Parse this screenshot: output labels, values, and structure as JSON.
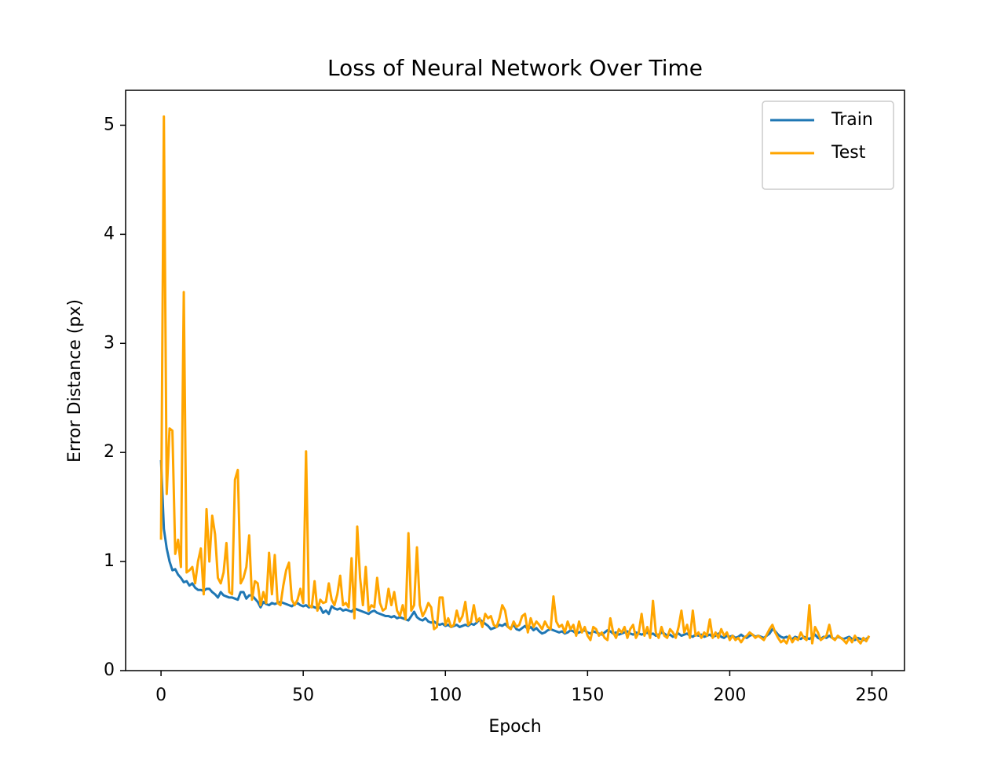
{
  "chart_data": {
    "type": "line",
    "title": "Loss of Neural Network Over Time",
    "xlabel": "Epoch",
    "ylabel": "Error Distance (px)",
    "x": [
      0,
      1,
      2,
      3,
      4,
      5,
      6,
      7,
      8,
      9,
      10,
      11,
      12,
      13,
      14,
      15,
      16,
      17,
      18,
      19,
      20,
      21,
      22,
      23,
      24,
      25,
      26,
      27,
      28,
      29,
      30,
      31,
      32,
      33,
      34,
      35,
      36,
      37,
      38,
      39,
      40,
      41,
      42,
      43,
      44,
      45,
      46,
      47,
      48,
      49,
      50,
      51,
      52,
      53,
      54,
      55,
      56,
      57,
      58,
      59,
      60,
      61,
      62,
      63,
      64,
      65,
      66,
      67,
      68,
      69,
      70,
      71,
      72,
      73,
      74,
      75,
      76,
      77,
      78,
      79,
      80,
      81,
      82,
      83,
      84,
      85,
      86,
      87,
      88,
      89,
      90,
      91,
      92,
      93,
      94,
      95,
      96,
      97,
      98,
      99,
      100,
      101,
      102,
      103,
      104,
      105,
      106,
      107,
      108,
      109,
      110,
      111,
      112,
      113,
      114,
      115,
      116,
      117,
      118,
      119,
      120,
      121,
      122,
      123,
      124,
      125,
      126,
      127,
      128,
      129,
      130,
      131,
      132,
      133,
      134,
      135,
      136,
      137,
      138,
      139,
      140,
      141,
      142,
      143,
      144,
      145,
      146,
      147,
      148,
      149,
      150,
      151,
      152,
      153,
      154,
      155,
      156,
      157,
      158,
      159,
      160,
      161,
      162,
      163,
      164,
      165,
      166,
      167,
      168,
      169,
      170,
      171,
      172,
      173,
      174,
      175,
      176,
      177,
      178,
      179,
      180,
      181,
      182,
      183,
      184,
      185,
      186,
      187,
      188,
      189,
      190,
      191,
      192,
      193,
      194,
      195,
      196,
      197,
      198,
      199,
      200,
      201,
      202,
      203,
      204,
      205,
      206,
      207,
      208,
      209,
      210,
      211,
      212,
      213,
      214,
      215,
      216,
      217,
      218,
      219,
      220,
      221,
      222,
      223,
      224,
      225,
      226,
      227,
      228,
      229,
      230,
      231,
      232,
      233,
      234,
      235,
      236,
      237,
      238,
      239,
      240,
      241,
      242,
      243,
      244,
      245,
      246,
      247,
      248,
      249
    ],
    "series": [
      {
        "name": "Train",
        "color": "#1f77b4",
        "values": [
          1.93,
          1.3,
          1.12,
          1.0,
          0.92,
          0.93,
          0.88,
          0.85,
          0.81,
          0.82,
          0.78,
          0.8,
          0.76,
          0.74,
          0.74,
          0.73,
          0.75,
          0.75,
          0.72,
          0.7,
          0.67,
          0.72,
          0.69,
          0.68,
          0.67,
          0.67,
          0.66,
          0.65,
          0.72,
          0.72,
          0.66,
          0.69,
          0.69,
          0.66,
          0.63,
          0.58,
          0.63,
          0.61,
          0.6,
          0.62,
          0.61,
          0.62,
          0.63,
          0.62,
          0.61,
          0.6,
          0.59,
          0.61,
          0.62,
          0.6,
          0.59,
          0.6,
          0.58,
          0.59,
          0.58,
          0.57,
          0.58,
          0.53,
          0.55,
          0.52,
          0.59,
          0.57,
          0.56,
          0.57,
          0.55,
          0.56,
          0.55,
          0.54,
          0.57,
          0.56,
          0.55,
          0.54,
          0.53,
          0.52,
          0.54,
          0.55,
          0.53,
          0.52,
          0.51,
          0.5,
          0.5,
          0.49,
          0.5,
          0.48,
          0.49,
          0.48,
          0.47,
          0.46,
          0.5,
          0.54,
          0.49,
          0.47,
          0.46,
          0.48,
          0.45,
          0.44,
          0.45,
          0.43,
          0.42,
          0.43,
          0.41,
          0.42,
          0.4,
          0.41,
          0.42,
          0.4,
          0.41,
          0.42,
          0.41,
          0.43,
          0.42,
          0.44,
          0.47,
          0.45,
          0.43,
          0.41,
          0.38,
          0.39,
          0.4,
          0.42,
          0.41,
          0.43,
          0.4,
          0.39,
          0.42,
          0.38,
          0.37,
          0.39,
          0.41,
          0.38,
          0.4,
          0.37,
          0.39,
          0.36,
          0.34,
          0.35,
          0.37,
          0.38,
          0.37,
          0.36,
          0.35,
          0.36,
          0.34,
          0.35,
          0.37,
          0.36,
          0.34,
          0.35,
          0.36,
          0.37,
          0.35,
          0.34,
          0.36,
          0.35,
          0.34,
          0.33,
          0.35,
          0.37,
          0.36,
          0.34,
          0.35,
          0.33,
          0.34,
          0.35,
          0.36,
          0.34,
          0.33,
          0.35,
          0.34,
          0.33,
          0.34,
          0.35,
          0.33,
          0.34,
          0.32,
          0.33,
          0.35,
          0.34,
          0.32,
          0.33,
          0.31,
          0.33,
          0.34,
          0.32,
          0.33,
          0.34,
          0.32,
          0.31,
          0.33,
          0.32,
          0.33,
          0.31,
          0.32,
          0.33,
          0.31,
          0.32,
          0.34,
          0.31,
          0.3,
          0.32,
          0.31,
          0.32,
          0.3,
          0.31,
          0.33,
          0.31,
          0.3,
          0.32,
          0.33,
          0.31,
          0.32,
          0.31,
          0.3,
          0.32,
          0.34,
          0.38,
          0.36,
          0.33,
          0.31,
          0.3,
          0.31,
          0.3,
          0.29,
          0.31,
          0.3,
          0.29,
          0.31,
          0.3,
          0.29,
          0.31,
          0.33,
          0.3,
          0.29,
          0.31,
          0.3,
          0.32,
          0.3,
          0.29,
          0.31,
          0.3,
          0.29,
          0.3,
          0.31,
          0.29,
          0.28,
          0.3,
          0.29,
          0.28,
          0.29,
          0.31
        ]
      },
      {
        "name": "Test",
        "color": "#ffa500",
        "values": [
          1.2,
          5.08,
          1.62,
          2.22,
          2.2,
          1.07,
          1.2,
          0.95,
          3.47,
          0.9,
          0.92,
          0.95,
          0.8,
          1.0,
          1.12,
          0.7,
          1.48,
          1.0,
          1.42,
          1.25,
          0.85,
          0.8,
          0.9,
          1.17,
          0.72,
          0.7,
          1.75,
          1.84,
          0.8,
          0.85,
          0.95,
          1.24,
          0.65,
          0.82,
          0.8,
          0.6,
          0.72,
          0.62,
          1.08,
          0.7,
          1.06,
          0.62,
          0.6,
          0.78,
          0.92,
          0.99,
          0.65,
          0.6,
          0.65,
          0.75,
          0.62,
          2.01,
          0.6,
          0.58,
          0.82,
          0.55,
          0.65,
          0.62,
          0.63,
          0.8,
          0.65,
          0.6,
          0.7,
          0.87,
          0.6,
          0.62,
          0.58,
          1.03,
          0.48,
          1.32,
          0.85,
          0.6,
          0.95,
          0.55,
          0.6,
          0.58,
          0.85,
          0.62,
          0.55,
          0.57,
          0.75,
          0.6,
          0.72,
          0.55,
          0.5,
          0.6,
          0.47,
          1.26,
          0.55,
          0.6,
          1.13,
          0.6,
          0.5,
          0.55,
          0.62,
          0.58,
          0.38,
          0.4,
          0.67,
          0.67,
          0.42,
          0.48,
          0.4,
          0.42,
          0.55,
          0.45,
          0.5,
          0.63,
          0.42,
          0.45,
          0.6,
          0.45,
          0.48,
          0.4,
          0.52,
          0.48,
          0.5,
          0.42,
          0.4,
          0.48,
          0.6,
          0.55,
          0.4,
          0.38,
          0.45,
          0.4,
          0.42,
          0.5,
          0.52,
          0.35,
          0.48,
          0.4,
          0.45,
          0.42,
          0.38,
          0.45,
          0.4,
          0.38,
          0.68,
          0.45,
          0.4,
          0.42,
          0.35,
          0.45,
          0.38,
          0.42,
          0.32,
          0.45,
          0.35,
          0.4,
          0.32,
          0.28,
          0.4,
          0.38,
          0.32,
          0.35,
          0.3,
          0.28,
          0.48,
          0.35,
          0.3,
          0.38,
          0.35,
          0.4,
          0.3,
          0.38,
          0.42,
          0.3,
          0.35,
          0.52,
          0.32,
          0.4,
          0.3,
          0.64,
          0.35,
          0.3,
          0.4,
          0.32,
          0.3,
          0.38,
          0.35,
          0.3,
          0.4,
          0.55,
          0.35,
          0.42,
          0.3,
          0.55,
          0.32,
          0.35,
          0.3,
          0.35,
          0.32,
          0.47,
          0.3,
          0.35,
          0.3,
          0.38,
          0.32,
          0.35,
          0.28,
          0.32,
          0.28,
          0.3,
          0.26,
          0.3,
          0.32,
          0.35,
          0.33,
          0.3,
          0.32,
          0.3,
          0.28,
          0.33,
          0.38,
          0.42,
          0.35,
          0.3,
          0.26,
          0.28,
          0.25,
          0.32,
          0.26,
          0.3,
          0.28,
          0.35,
          0.3,
          0.28,
          0.6,
          0.25,
          0.4,
          0.35,
          0.28,
          0.3,
          0.32,
          0.42,
          0.3,
          0.28,
          0.32,
          0.3,
          0.28,
          0.25,
          0.3,
          0.26,
          0.32,
          0.28,
          0.25,
          0.3,
          0.27,
          0.32
        ]
      }
    ],
    "xlim": [
      -12.45,
      261.45
    ],
    "xticks": [
      0,
      50,
      100,
      150,
      200,
      250
    ],
    "ylim": [
      0,
      5.32
    ],
    "yticks": [
      0,
      1,
      2,
      3,
      4,
      5
    ],
    "legend": "upper right"
  }
}
